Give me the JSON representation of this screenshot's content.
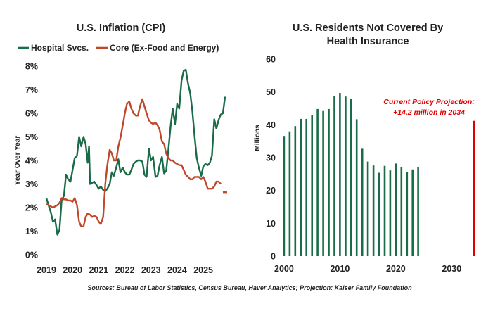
{
  "source_note": "Sources: Bureau of Labor Statistics, Census Bureau, Haver Analytics; Projection: Kaiser Family Foundation",
  "chart_data": [
    {
      "type": "line",
      "title": "U.S. Inflation (CPI)",
      "xlabel": "",
      "ylabel": "Year Over Year",
      "ylim": [
        0,
        8
      ],
      "xlim": [
        2019,
        2026.1
      ],
      "y_ticks": [
        "0%",
        "1%",
        "2%",
        "3%",
        "4%",
        "5%",
        "6%",
        "7%",
        "8%"
      ],
      "x_ticks": [
        "2019",
        "2020",
        "2021",
        "2022",
        "2023",
        "2024",
        "2025"
      ],
      "legend_position": "top",
      "grid": false,
      "series": [
        {
          "name": "Hospital Svcs.",
          "color": "#1a6b47",
          "points": [
            [
              2019.0,
              2.4
            ],
            [
              2019.08,
              2.1
            ],
            [
              2019.17,
              1.8
            ],
            [
              2019.25,
              1.4
            ],
            [
              2019.33,
              1.5
            ],
            [
              2019.42,
              0.85
            ],
            [
              2019.5,
              1.05
            ],
            [
              2019.58,
              2.3
            ],
            [
              2019.67,
              2.5
            ],
            [
              2019.75,
              3.4
            ],
            [
              2019.83,
              3.2
            ],
            [
              2019.92,
              3.1
            ],
            [
              2020.0,
              3.6
            ],
            [
              2020.08,
              4.1
            ],
            [
              2020.17,
              4.2
            ],
            [
              2020.25,
              5.0
            ],
            [
              2020.33,
              4.6
            ],
            [
              2020.42,
              5.0
            ],
            [
              2020.5,
              4.7
            ],
            [
              2020.58,
              3.9
            ],
            [
              2020.63,
              4.6
            ],
            [
              2020.67,
              3.0
            ],
            [
              2020.75,
              3.05
            ],
            [
              2020.83,
              3.1
            ],
            [
              2020.92,
              2.95
            ],
            [
              2021.0,
              2.8
            ],
            [
              2021.08,
              2.9
            ],
            [
              2021.17,
              2.75
            ],
            [
              2021.25,
              2.7
            ],
            [
              2021.33,
              2.8
            ],
            [
              2021.42,
              3.0
            ],
            [
              2021.5,
              3.5
            ],
            [
              2021.58,
              3.35
            ],
            [
              2021.67,
              3.7
            ],
            [
              2021.75,
              4.05
            ],
            [
              2021.83,
              3.5
            ],
            [
              2021.92,
              3.7
            ],
            [
              2022.0,
              3.5
            ],
            [
              2022.08,
              3.4
            ],
            [
              2022.17,
              3.4
            ],
            [
              2022.25,
              3.6
            ],
            [
              2022.33,
              3.85
            ],
            [
              2022.42,
              3.95
            ],
            [
              2022.5,
              4.0
            ],
            [
              2022.58,
              4.0
            ],
            [
              2022.67,
              3.95
            ],
            [
              2022.75,
              3.4
            ],
            [
              2022.83,
              3.3
            ],
            [
              2022.92,
              4.5
            ],
            [
              2023.0,
              4.0
            ],
            [
              2023.08,
              4.15
            ],
            [
              2023.17,
              3.3
            ],
            [
              2023.25,
              3.35
            ],
            [
              2023.33,
              3.8
            ],
            [
              2023.42,
              4.15
            ],
            [
              2023.5,
              3.45
            ],
            [
              2023.58,
              3.55
            ],
            [
              2023.67,
              4.5
            ],
            [
              2023.75,
              5.45
            ],
            [
              2023.83,
              6.2
            ],
            [
              2023.92,
              5.55
            ],
            [
              2024.0,
              6.4
            ],
            [
              2024.08,
              6.2
            ],
            [
              2024.17,
              7.4
            ],
            [
              2024.25,
              7.8
            ],
            [
              2024.33,
              7.85
            ],
            [
              2024.42,
              7.25
            ],
            [
              2024.5,
              6.85
            ],
            [
              2024.58,
              6.1
            ],
            [
              2024.67,
              5.0
            ],
            [
              2024.75,
              4.1
            ],
            [
              2024.83,
              3.7
            ],
            [
              2024.92,
              3.35
            ],
            [
              2025.0,
              3.75
            ],
            [
              2025.08,
              3.85
            ],
            [
              2025.17,
              3.8
            ],
            [
              2025.25,
              3.9
            ],
            [
              2025.33,
              4.2
            ],
            [
              2025.42,
              5.75
            ],
            [
              2025.5,
              5.35
            ],
            [
              2025.58,
              5.7
            ],
            [
              2025.63,
              5.85
            ],
            [
              2025.67,
              5.95
            ],
            [
              2025.75,
              6.0
            ],
            [
              2025.83,
              6.7
            ]
          ]
        },
        {
          "name": "Core (Ex-Food and Energy)",
          "color": "#c0482a",
          "points": [
            [
              2019.0,
              2.15
            ],
            [
              2019.08,
              2.1
            ],
            [
              2019.17,
              2.05
            ],
            [
              2019.25,
              2.0
            ],
            [
              2019.33,
              2.05
            ],
            [
              2019.42,
              2.1
            ],
            [
              2019.5,
              2.2
            ],
            [
              2019.58,
              2.4
            ],
            [
              2019.67,
              2.35
            ],
            [
              2019.75,
              2.35
            ],
            [
              2019.83,
              2.3
            ],
            [
              2019.92,
              2.3
            ],
            [
              2020.0,
              2.25
            ],
            [
              2020.08,
              2.4
            ],
            [
              2020.17,
              2.1
            ],
            [
              2020.25,
              1.4
            ],
            [
              2020.33,
              1.2
            ],
            [
              2020.42,
              1.2
            ],
            [
              2020.5,
              1.6
            ],
            [
              2020.58,
              1.75
            ],
            [
              2020.67,
              1.7
            ],
            [
              2020.75,
              1.6
            ],
            [
              2020.83,
              1.65
            ],
            [
              2020.92,
              1.6
            ],
            [
              2021.0,
              1.4
            ],
            [
              2021.08,
              1.3
            ],
            [
              2021.17,
              1.6
            ],
            [
              2021.25,
              3.0
            ],
            [
              2021.33,
              3.8
            ],
            [
              2021.42,
              4.45
            ],
            [
              2021.5,
              4.3
            ],
            [
              2021.58,
              4.0
            ],
            [
              2021.67,
              4.0
            ],
            [
              2021.75,
              4.6
            ],
            [
              2021.83,
              4.95
            ],
            [
              2021.92,
              5.5
            ],
            [
              2022.0,
              6.0
            ],
            [
              2022.08,
              6.4
            ],
            [
              2022.17,
              6.5
            ],
            [
              2022.25,
              6.2
            ],
            [
              2022.33,
              6.0
            ],
            [
              2022.42,
              5.9
            ],
            [
              2022.5,
              5.9
            ],
            [
              2022.58,
              6.3
            ],
            [
              2022.67,
              6.6
            ],
            [
              2022.75,
              6.3
            ],
            [
              2022.83,
              6.0
            ],
            [
              2022.92,
              5.7
            ],
            [
              2023.0,
              5.6
            ],
            [
              2023.08,
              5.55
            ],
            [
              2023.17,
              5.6
            ],
            [
              2023.25,
              5.5
            ],
            [
              2023.33,
              5.3
            ],
            [
              2023.42,
              4.8
            ],
            [
              2023.5,
              4.7
            ],
            [
              2023.58,
              4.3
            ],
            [
              2023.67,
              4.1
            ],
            [
              2023.75,
              4.0
            ],
            [
              2023.83,
              4.0
            ],
            [
              2023.92,
              3.9
            ],
            [
              2024.0,
              3.85
            ],
            [
              2024.08,
              3.8
            ],
            [
              2024.17,
              3.8
            ],
            [
              2024.25,
              3.6
            ],
            [
              2024.33,
              3.4
            ],
            [
              2024.42,
              3.3
            ],
            [
              2024.5,
              3.2
            ],
            [
              2024.58,
              3.2
            ],
            [
              2024.67,
              3.3
            ],
            [
              2024.75,
              3.3
            ],
            [
              2024.83,
              3.3
            ],
            [
              2024.92,
              3.2
            ],
            [
              2025.0,
              3.3
            ],
            [
              2025.08,
              3.1
            ],
            [
              2025.17,
              2.8
            ],
            [
              2025.25,
              2.8
            ],
            [
              2025.33,
              2.8
            ],
            [
              2025.42,
              2.9
            ],
            [
              2025.5,
              3.1
            ],
            [
              2025.58,
              3.1
            ],
            [
              2025.63,
              3.05
            ],
            [
              2025.67,
              3.0
            ]
          ],
          "latest_marker": [
            2025.83,
            2.65
          ]
        }
      ]
    },
    {
      "type": "bar",
      "title": "U.S. Residents Not Covered By Health Insurance",
      "xlabel": "",
      "ylabel": "Millions",
      "ylim": [
        0,
        60
      ],
      "xlim": [
        1999,
        2036
      ],
      "y_ticks": [
        "0",
        "10",
        "20",
        "30",
        "40",
        "50",
        "60"
      ],
      "x_ticks": [
        "2000",
        "2010",
        "2020",
        "2030"
      ],
      "grid": false,
      "series": [
        {
          "name": "Not covered",
          "color": "#1a6b47",
          "categories": [
            2000,
            2001,
            2002,
            2003,
            2004,
            2005,
            2006,
            2007,
            2008,
            2009,
            2010,
            2011,
            2012,
            2013,
            2014,
            2015,
            2016,
            2017,
            2018,
            2019,
            2020,
            2021,
            2022,
            2023,
            2024
          ],
          "values": [
            36.6,
            38.0,
            39.6,
            41.8,
            41.8,
            42.9,
            44.8,
            44.2,
            44.8,
            48.7,
            49.7,
            48.6,
            47.8,
            41.7,
            32.7,
            28.8,
            27.6,
            25.4,
            27.5,
            26.1,
            28.2,
            27.2,
            25.6,
            26.4,
            27.0
          ]
        },
        {
          "name": "Current Policy Projection",
          "color": "#e00000",
          "categories": [
            2034
          ],
          "values": [
            41.2
          ]
        }
      ],
      "annotation": {
        "line1": "Current Policy Projection:",
        "line2": "+14.2 million in 2034"
      }
    }
  ]
}
